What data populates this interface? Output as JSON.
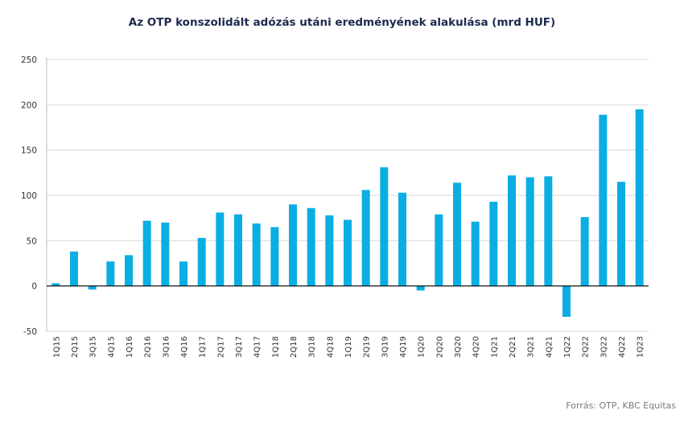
{
  "chart_data": {
    "type": "bar",
    "title": "Az OTP konszolidált adózás utáni eredményének alakulása (mrd HUF)",
    "xlabel": "",
    "ylabel": "",
    "ylim": [
      -50,
      250
    ],
    "yticks": [
      -50,
      0,
      50,
      100,
      150,
      200,
      250
    ],
    "grid": true,
    "legend": "none",
    "bar_color": "#0aaee3",
    "categories": [
      "1Q15",
      "2Q15",
      "3Q15",
      "4Q15",
      "1Q16",
      "2Q16",
      "3Q16",
      "4Q16",
      "1Q17",
      "2Q17",
      "3Q17",
      "4Q17",
      "1Q18",
      "2Q18",
      "3Q18",
      "4Q18",
      "1Q19",
      "2Q19",
      "3Q19",
      "4Q19",
      "1Q20",
      "2Q20",
      "3Q20",
      "4Q20",
      "1Q21",
      "2Q21",
      "3Q21",
      "4Q21",
      "1Q22",
      "2Q22",
      "3Q22",
      "4Q22",
      "1Q23"
    ],
    "values": [
      3,
      38,
      -4,
      27,
      34,
      72,
      70,
      27,
      53,
      81,
      79,
      69,
      65,
      90,
      86,
      78,
      73,
      106,
      131,
      103,
      -5,
      79,
      114,
      71,
      93,
      122,
      120,
      121,
      -34,
      76,
      189,
      115,
      195
    ]
  },
  "source": "Forrás: OTP, KBC Equitas"
}
